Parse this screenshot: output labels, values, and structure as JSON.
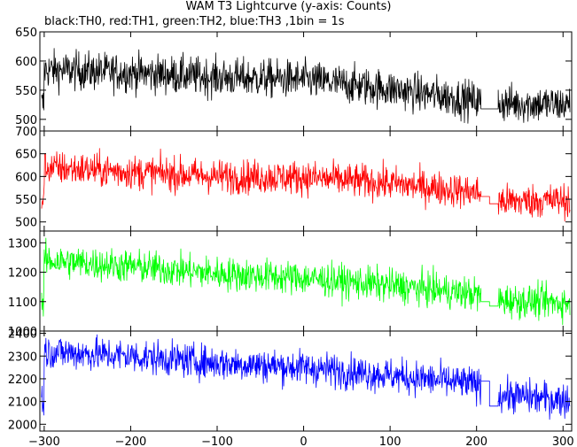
{
  "chart_data": {
    "type": "line",
    "title": "WAM T3 Lightcurve (y-axis: Counts)",
    "subtitle": "black:TH0, red:TH1, green:TH2, blue:TH3 ,1bin = 1s",
    "xlim": [
      -305,
      310
    ],
    "x_ticks": [
      -300,
      -200,
      -100,
      0,
      100,
      200,
      300
    ],
    "gap": [
      205,
      225
    ],
    "series": [
      {
        "name": "TH0",
        "color": "#000000",
        "ylim": [
          480,
          650
        ],
        "y_ticks": [
          500,
          550,
          600,
          650
        ],
        "trend": [
          [
            -300,
            585
          ],
          [
            -200,
            580
          ],
          [
            -100,
            572
          ],
          [
            0,
            568
          ],
          [
            100,
            552
          ],
          [
            200,
            532
          ],
          [
            225,
            528
          ],
          [
            310,
            525
          ]
        ],
        "noise": 22,
        "gap_level": 518
      },
      {
        "name": "TH1",
        "color": "#ff0000",
        "ylim": [
          480,
          700
        ],
        "y_ticks": [
          500,
          550,
          600,
          650,
          700
        ],
        "trend": [
          [
            -300,
            620
          ],
          [
            -200,
            610
          ],
          [
            -100,
            600
          ],
          [
            0,
            598
          ],
          [
            100,
            585
          ],
          [
            200,
            565
          ],
          [
            225,
            545
          ],
          [
            310,
            548
          ]
        ],
        "noise": 25,
        "gap_level": 556,
        "gap_level2": 540
      },
      {
        "name": "TH2",
        "color": "#00ff00",
        "ylim": [
          1000,
          1340
        ],
        "y_ticks": [
          1000,
          1100,
          1200,
          1300
        ],
        "trend": [
          [
            -300,
            1240
          ],
          [
            -200,
            1220
          ],
          [
            -100,
            1195
          ],
          [
            0,
            1180
          ],
          [
            100,
            1155
          ],
          [
            200,
            1125
          ],
          [
            225,
            1105
          ],
          [
            310,
            1095
          ]
        ],
        "noise": 38,
        "gap_level": 1100,
        "gap_level2": 1085
      },
      {
        "name": "TH3",
        "color": "#0000ff",
        "ylim": [
          1970,
          2410
        ],
        "y_ticks": [
          2000,
          2100,
          2200,
          2300,
          2400
        ],
        "trend": [
          [
            -300,
            2320
          ],
          [
            -200,
            2300
          ],
          [
            -100,
            2270
          ],
          [
            0,
            2250
          ],
          [
            100,
            2215
          ],
          [
            200,
            2175
          ],
          [
            225,
            2130
          ],
          [
            310,
            2105
          ]
        ],
        "noise": 50,
        "gap_level": 2190,
        "gap_level2": 2080
      }
    ]
  }
}
